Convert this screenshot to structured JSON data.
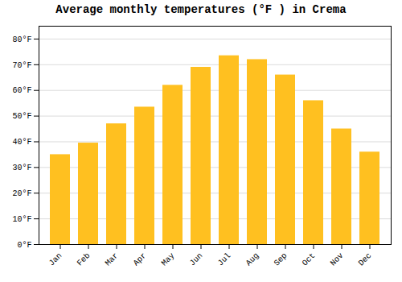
{
  "chart_data": {
    "type": "bar",
    "title": "Average monthly temperatures (°F ) in Crema",
    "categories": [
      "Jan",
      "Feb",
      "Mar",
      "Apr",
      "May",
      "Jun",
      "Jul",
      "Aug",
      "Sep",
      "Oct",
      "Nov",
      "Dec"
    ],
    "values": [
      35.0,
      39.5,
      47.0,
      53.5,
      62.0,
      69.0,
      73.5,
      72.0,
      66.0,
      56.0,
      45.0,
      36.0
    ],
    "color": "#FFC020",
    "ylim": [
      0,
      85
    ],
    "yticks": [
      {
        "value": 0,
        "label": "0°F"
      },
      {
        "value": 10,
        "label": "10°F"
      },
      {
        "value": 20,
        "label": "20°F"
      },
      {
        "value": 30,
        "label": "30°F"
      },
      {
        "value": 40,
        "label": "40°F"
      },
      {
        "value": 50,
        "label": "50°F"
      },
      {
        "value": 60,
        "label": "60°F"
      },
      {
        "value": 70,
        "label": "70°F"
      },
      {
        "value": 80,
        "label": "80°F"
      }
    ],
    "grid": true
  }
}
